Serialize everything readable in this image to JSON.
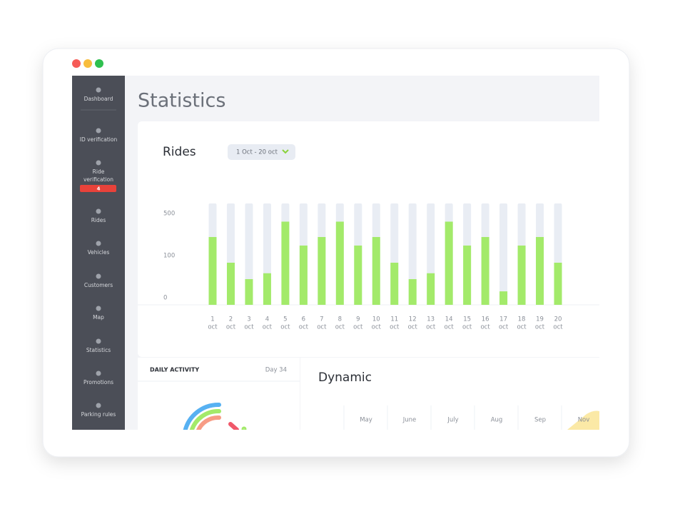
{
  "header": {
    "title": "Statistics"
  },
  "sidebar": {
    "items": [
      {
        "label": "Dashboard"
      },
      {
        "label": "ID verification"
      },
      {
        "label": "Ride verification",
        "badge": "4"
      },
      {
        "label": "Rides"
      },
      {
        "label": "Vehicles"
      },
      {
        "label": "Customers"
      },
      {
        "label": "Map"
      },
      {
        "label": "Statistics"
      },
      {
        "label": "Promotions"
      },
      {
        "label": "Parking rules"
      }
    ]
  },
  "rides_card": {
    "title": "Rides",
    "date_range": "1 Oct - 20 oct"
  },
  "chart_data": {
    "type": "bar",
    "categories": [
      "1",
      "2",
      "3",
      "4",
      "5",
      "6",
      "7",
      "8",
      "9",
      "10",
      "11",
      "12",
      "13",
      "14",
      "15",
      "16",
      "17",
      "18",
      "19",
      "20"
    ],
    "x_sublabel": "oct",
    "values": [
      344,
      100,
      61,
      75,
      490,
      263,
      344,
      490,
      263,
      344,
      100,
      61,
      75,
      490,
      263,
      344,
      32,
      263,
      344,
      100
    ],
    "color": "#a3ea6a",
    "track_color": "#e9edf4",
    "yticks": [
      0,
      100,
      500
    ]
  },
  "daily_activity": {
    "title": "DAILY ACTIVITY",
    "day": "Day 34"
  },
  "dynamic": {
    "title": "Dynamic",
    "months": [
      "May",
      "June",
      "July",
      "Aug",
      "Sep",
      "Nov"
    ]
  }
}
